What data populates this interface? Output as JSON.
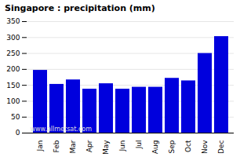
{
  "chart_data": {
    "type": "bar",
    "title": "Singapore : precipitation (mm)",
    "categories": [
      "Jan",
      "Feb",
      "Mar",
      "Apr",
      "May",
      "Jun",
      "Jul",
      "Aug",
      "Sep",
      "Oct",
      "Nov",
      "Dec"
    ],
    "values": [
      197,
      153,
      167,
      138,
      155,
      138,
      144,
      144,
      172,
      164,
      250,
      303
    ],
    "color": "#0000dd",
    "ylim": [
      0,
      350
    ],
    "yticks": [
      0,
      50,
      100,
      150,
      200,
      250,
      300,
      350
    ],
    "grid": true,
    "annotations": [
      "www.allmetsat.com"
    ]
  }
}
